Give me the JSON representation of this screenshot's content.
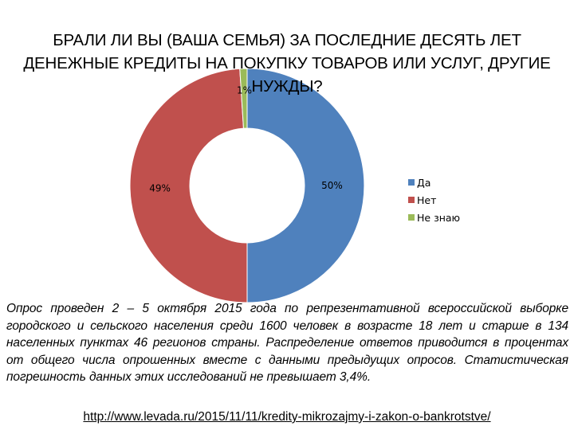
{
  "title": "БРАЛИ ЛИ ВЫ (ВАША СЕМЬЯ) ЗА ПОСЛЕДНИЕ ДЕСЯТЬ ЛЕТ ДЕНЕЖНЫЕ КРЕДИТЫ НА ПОКУПКУ ТОВАРОВ ИЛИ УСЛУГ, ДРУГИЕ НУЖДЫ?",
  "chart_data": {
    "type": "pie",
    "variant": "doughnut",
    "categories": [
      "Да",
      "Нет",
      "Не знаю"
    ],
    "values": [
      50,
      49,
      1
    ],
    "labels": [
      "50%",
      "49%",
      "1%"
    ],
    "colors": [
      "#4f81bd",
      "#c0504d",
      "#9bbb59"
    ],
    "legend_position": "right"
  },
  "note": "Опрос проведен 2 – 5 октября 2015 года  по репрезентативной всероссийской выборке городского и сельского населения среди 1600 человек в возрасте 18 лет и старше в 134 населенных пунктах 46 регионов страны. Распределение ответов приводится в процентах от общего числа опрошенных вместе с данными предыдущих опросов. Статистическая погрешность данных этих исследований не превышает 3,4%.",
  "source_url": "http://www.levada.ru/2015/11/11/kredity-mikrozajmy-i-zakon-o-bankrotstve/"
}
